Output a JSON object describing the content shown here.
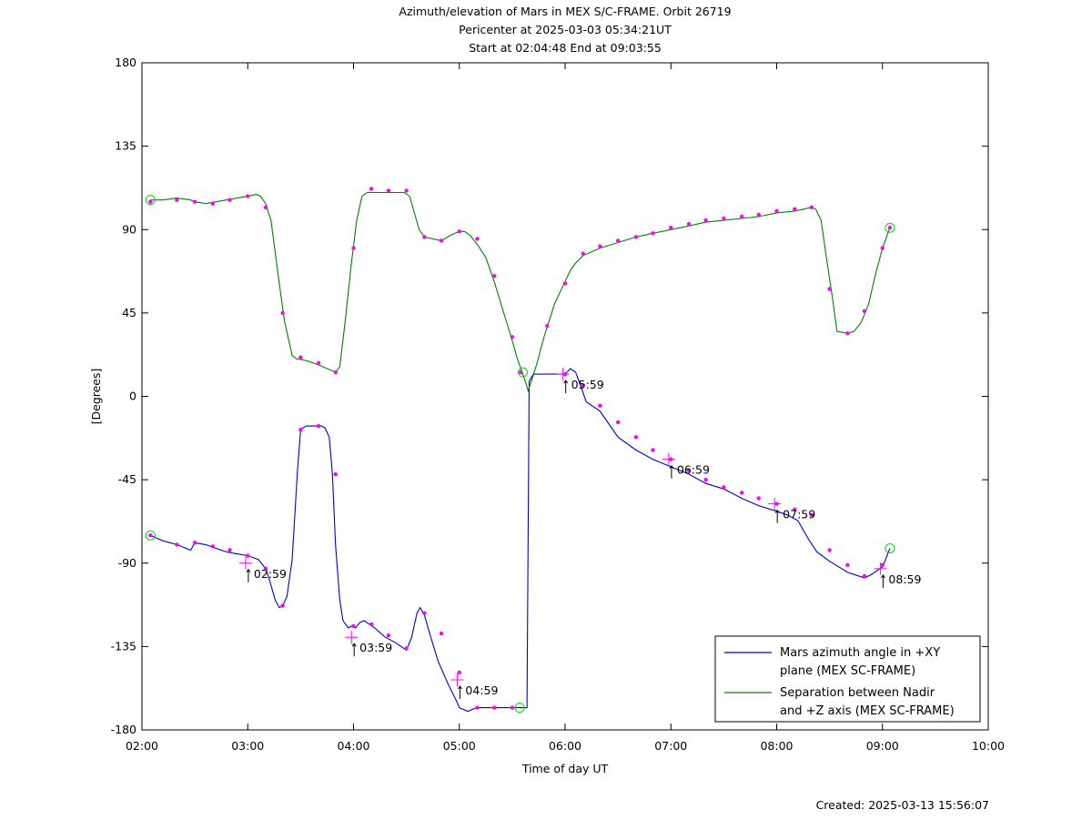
{
  "chart_data": {
    "type": "line",
    "title": [
      "Azimuth/elevation of Mars in MEX S/C-FRAME.  Orbit 26719",
      "Pericenter at 2025-03-03 05:34:21UT",
      "Start at 02:04:48 End at 09:03:55"
    ],
    "xlabel": "Time of day UT",
    "ylabel": "[Degrees]",
    "xlim": [
      2.0,
      10.0
    ],
    "ylim": [
      -180,
      180
    ],
    "x_ticks": [
      2,
      3,
      4,
      5,
      6,
      7,
      8,
      9,
      10
    ],
    "x_tick_labels": [
      "02:00",
      "03:00",
      "04:00",
      "05:00",
      "06:00",
      "07:00",
      "08:00",
      "09:00",
      "10:00"
    ],
    "y_ticks": [
      -180,
      -135,
      -90,
      -45,
      0,
      45,
      90,
      135,
      180
    ],
    "y_tick_labels": [
      "-180",
      "-135",
      "-90",
      "-45",
      "0",
      "45",
      "90",
      "135",
      "180"
    ],
    "grid": false,
    "legend_position": "bottom-right",
    "series": [
      {
        "name": "Mars azimuth angle in +XY plane (MEX SC-FRAME)",
        "legend_lines": [
          "Mars azimuth angle in +XY",
          "plane (MEX SC-FRAME)"
        ],
        "color": "#0000cc",
        "x": [
          2.08,
          2.2,
          2.33,
          2.46,
          2.5,
          2.6,
          2.7,
          2.8,
          2.9,
          3.0,
          3.1,
          3.17,
          3.2,
          3.26,
          3.3,
          3.33,
          3.37,
          3.42,
          3.47,
          3.5,
          3.55,
          3.6,
          3.67,
          3.7,
          3.73,
          3.77,
          3.8,
          3.83,
          3.87,
          3.9,
          3.95,
          3.98,
          4.02,
          4.06,
          4.1,
          4.15,
          4.2,
          4.3,
          4.4,
          4.5,
          4.55,
          4.6,
          4.63,
          4.67,
          4.72,
          4.8,
          4.9,
          4.97,
          5.0,
          5.08,
          5.16,
          5.2,
          5.33,
          5.45,
          5.57,
          5.6,
          5.62,
          5.64,
          5.66,
          5.7,
          5.85,
          6.0,
          6.05,
          6.1,
          6.2,
          6.33,
          6.5,
          6.67,
          6.83,
          7.0,
          7.17,
          7.33,
          7.5,
          7.67,
          7.83,
          8.0,
          8.1,
          8.2,
          8.3,
          8.38,
          8.5,
          8.67,
          8.83,
          8.9,
          9.0,
          9.03,
          9.07
        ],
        "y": [
          -75,
          -78,
          -80,
          -83,
          -79,
          -80,
          -82,
          -84,
          -85,
          -86,
          -88,
          -93,
          -98,
          -110,
          -114,
          -113,
          -108,
          -88,
          -40,
          -18,
          -16,
          -16,
          -16,
          -16,
          -17,
          -22,
          -42,
          -80,
          -110,
          -121,
          -125,
          -124,
          -125,
          -122,
          -121,
          -123,
          -125,
          -130,
          -133,
          -137,
          -130,
          -117,
          -114,
          -118,
          -128,
          -143,
          -156,
          -164,
          -168,
          -170,
          -168,
          -168,
          -168,
          -168,
          -168,
          -168,
          -168,
          -168,
          8,
          12,
          12,
          12,
          15,
          13,
          -3,
          -8,
          -22,
          -29,
          -34,
          -38,
          -42,
          -47,
          -50,
          -55,
          -59,
          -62,
          -64,
          -67,
          -77,
          -84,
          -89,
          -95,
          -98,
          -96,
          -92,
          -88,
          -82
        ],
        "markers_x": [
          2.08,
          2.33,
          2.5,
          2.67,
          2.83,
          3.0,
          3.17,
          3.33,
          3.5,
          3.67,
          3.83,
          4.0,
          4.17,
          4.33,
          4.5,
          4.67,
          4.83,
          5.0,
          5.17,
          5.33,
          5.5,
          6.0,
          6.17,
          6.33,
          6.5,
          6.67,
          6.83,
          7.0,
          7.17,
          7.33,
          7.5,
          7.67,
          7.83,
          8.0,
          8.17,
          8.33,
          8.5,
          8.67,
          8.83,
          9.0
        ],
        "markers_y": [
          -75,
          -80,
          -79,
          -81,
          -83,
          -86,
          -93,
          -113,
          -18,
          -16,
          -42,
          -124,
          -123,
          -129,
          -136,
          -117,
          -128,
          -149,
          -168,
          -168,
          -168,
          12,
          6,
          -5,
          -14,
          -22,
          -29,
          -34,
          -40,
          -45,
          -49,
          -52,
          -55,
          -58,
          -61,
          -64,
          -83,
          -91,
          -97,
          -91
        ]
      },
      {
        "name": "Separation between Nadir and +Z axis (MEX SC-FRAME)",
        "legend_lines": [
          "Separation between Nadir",
          "and +Z axis (MEX SC-FRAME)"
        ],
        "color": "#008000",
        "x": [
          2.08,
          2.2,
          2.33,
          2.46,
          2.5,
          2.6,
          2.7,
          2.8,
          2.9,
          3.0,
          3.08,
          3.12,
          3.17,
          3.22,
          3.3,
          3.35,
          3.42,
          3.47,
          3.5,
          3.57,
          3.67,
          3.75,
          3.83,
          3.87,
          3.92,
          3.98,
          4.03,
          4.08,
          4.13,
          4.2,
          4.3,
          4.4,
          4.48,
          4.53,
          4.57,
          4.62,
          4.67,
          4.75,
          4.83,
          4.92,
          5.0,
          5.05,
          5.1,
          5.17,
          5.25,
          5.33,
          5.42,
          5.5,
          5.55,
          5.6,
          5.63,
          5.65,
          5.68,
          5.73,
          5.8,
          5.9,
          6.0,
          6.05,
          6.1,
          6.17,
          6.33,
          6.5,
          6.67,
          6.83,
          7.0,
          7.17,
          7.33,
          7.5,
          7.67,
          7.83,
          8.0,
          8.17,
          8.25,
          8.33,
          8.37,
          8.42,
          8.47,
          8.53,
          8.57,
          8.67,
          8.73,
          8.8,
          8.87,
          8.93,
          9.0,
          9.07
        ],
        "y": [
          106,
          106,
          107,
          106,
          105,
          104,
          105,
          106,
          107,
          108,
          109,
          108,
          104,
          95,
          60,
          40,
          22,
          20,
          20,
          19,
          17,
          15,
          13,
          16,
          40,
          72,
          95,
          108,
          110,
          110,
          110,
          110,
          110,
          108,
          100,
          90,
          86,
          85,
          84,
          87,
          89,
          89,
          87,
          82,
          75,
          62,
          45,
          30,
          20,
          12,
          7,
          3,
          8,
          17,
          32,
          50,
          62,
          68,
          72,
          76,
          80,
          83,
          86,
          88,
          90,
          92,
          94,
          95,
          96,
          97,
          99,
          100,
          101,
          102,
          101,
          95,
          75,
          52,
          35,
          34,
          35,
          40,
          50,
          65,
          80,
          91
        ],
        "markers_x": [
          2.08,
          2.33,
          2.5,
          2.67,
          2.83,
          3.0,
          3.17,
          3.33,
          3.5,
          3.67,
          3.83,
          4.0,
          4.17,
          4.33,
          4.5,
          4.67,
          4.83,
          5.0,
          5.17,
          5.33,
          5.5,
          5.58,
          5.83,
          6.0,
          6.17,
          6.33,
          6.5,
          6.67,
          6.83,
          7.0,
          7.17,
          7.33,
          7.5,
          7.67,
          7.83,
          8.0,
          8.17,
          8.33,
          8.5,
          8.67,
          8.83,
          9.0,
          9.07
        ],
        "markers_y": [
          105,
          106,
          105,
          104,
          106,
          108,
          102,
          45,
          21,
          18,
          13,
          80,
          112,
          111,
          111,
          86,
          84,
          89,
          85,
          65,
          32,
          13,
          38,
          61,
          77,
          81,
          84,
          86,
          88,
          91,
          93,
          95,
          96,
          97,
          98,
          100,
          101,
          102,
          58,
          34,
          46,
          80,
          91
        ]
      }
    ],
    "annotations": [
      {
        "text": "02:59",
        "x": 2.98,
        "y": -90
      },
      {
        "text": "03:59",
        "x": 3.98,
        "y": -130
      },
      {
        "text": "04:59",
        "x": 4.98,
        "y": -153
      },
      {
        "text": "05:59",
        "x": 5.98,
        "y": 12
      },
      {
        "text": "06:59",
        "x": 6.98,
        "y": -34
      },
      {
        "text": "07:59",
        "x": 7.98,
        "y": -58
      },
      {
        "text": "08:59",
        "x": 8.98,
        "y": -93
      }
    ],
    "endpoint_circles": [
      {
        "x": 2.08,
        "y": -75
      },
      {
        "x": 9.07,
        "y": -82
      },
      {
        "x": 2.08,
        "y": 106
      },
      {
        "x": 9.07,
        "y": 91
      },
      {
        "x": 5.57,
        "y": -168
      },
      {
        "x": 5.6,
        "y": 13
      }
    ]
  },
  "footer": {
    "created": "Created: 2025-03-13 15:56:07"
  }
}
